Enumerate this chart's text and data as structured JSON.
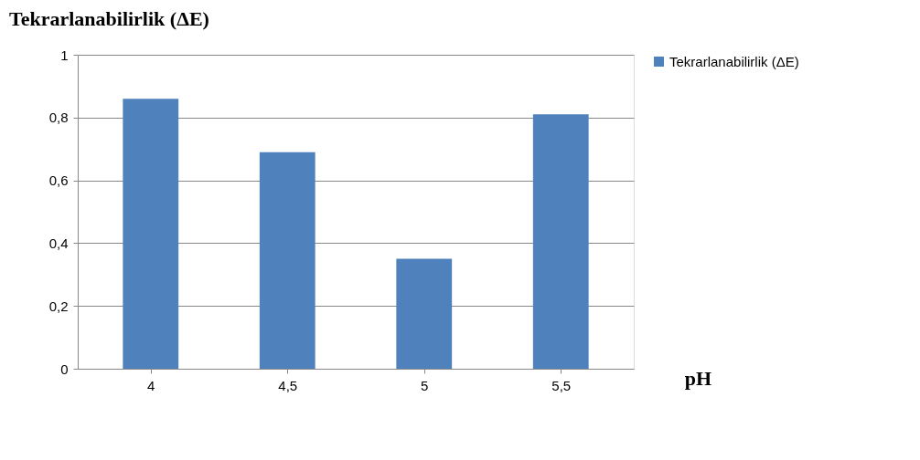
{
  "chart_data": {
    "type": "bar",
    "title": "Tekrarlanabilirlik (ΔE)",
    "xlabel": "pH",
    "categories": [
      "4",
      "4,5",
      "5",
      "5,5"
    ],
    "series": [
      {
        "name": "Tekrarlanabilirlik (ΔE)",
        "color": "#4f81bd",
        "values": [
          0.86,
          0.69,
          0.35,
          0.81
        ]
      }
    ],
    "ylim": [
      0,
      1
    ],
    "yticks": [
      0,
      {
        "value": 0.2,
        "label": "0,2"
      },
      {
        "value": 0.4,
        "label": "0,4"
      },
      {
        "value": 0.6,
        "label": "0,6"
      },
      {
        "value": 0.8,
        "label": "0,8"
      },
      1
    ],
    "grid": "y",
    "legend": "right"
  }
}
